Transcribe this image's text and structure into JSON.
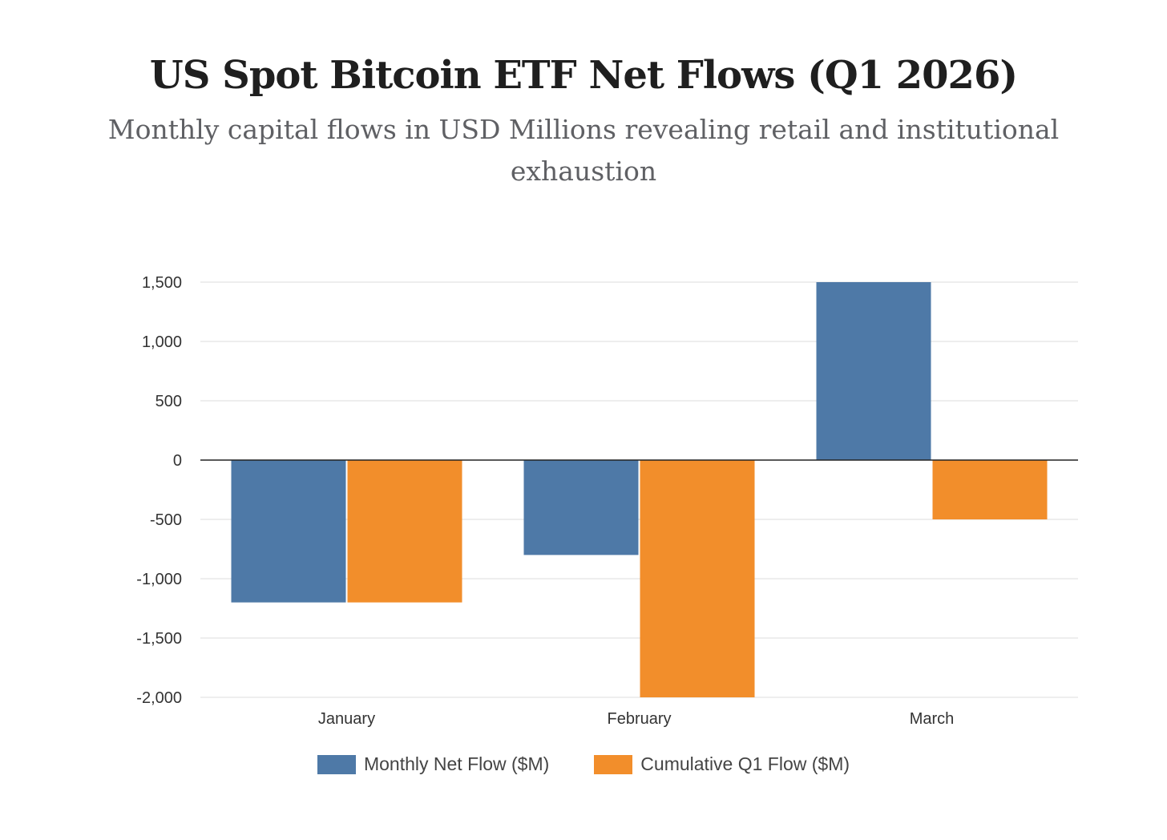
{
  "chart_data": {
    "type": "bar",
    "title": "US Spot Bitcoin ETF Net Flows (Q1 2026)",
    "subtitle": "Monthly capital flows in USD Millions revealing retail and institutional exhaustion",
    "categories": [
      "January",
      "February",
      "March"
    ],
    "series": [
      {
        "name": "Monthly Net Flow ($M)",
        "color": "#4e79a7",
        "values": [
          -1200,
          -800,
          1500
        ]
      },
      {
        "name": "Cumulative Q1 Flow ($M)",
        "color": "#f28e2b",
        "values": [
          -1200,
          -2000,
          -500
        ]
      }
    ],
    "xlabel": "",
    "ylabel": "",
    "ylim": [
      -2000,
      1500
    ],
    "yticks": [
      1500,
      1000,
      500,
      0,
      -500,
      -1000,
      -1500,
      -2000
    ],
    "ytick_labels": [
      "1,500",
      "1,000",
      "500",
      "0",
      "-500",
      "-1,000",
      "-1,500",
      "-2,000"
    ],
    "grid": true,
    "legend_position": "bottom-center"
  }
}
